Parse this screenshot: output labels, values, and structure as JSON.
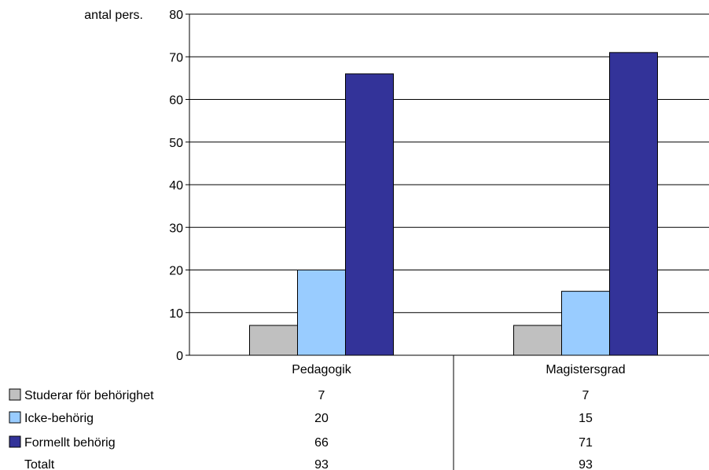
{
  "chart_data": {
    "type": "bar",
    "ylabel": "antal pers.",
    "ylim": [
      0,
      80
    ],
    "yticks": [
      0,
      10,
      20,
      30,
      40,
      50,
      60,
      70,
      80
    ],
    "grid": true,
    "categories": [
      "Pedagogik",
      "Magistersgrad"
    ],
    "series": [
      {
        "name": "Studerar för behörighet",
        "values": [
          7,
          7
        ],
        "color": "#c0c0c0"
      },
      {
        "name": "Icke-behörig",
        "values": [
          20,
          15
        ],
        "color": "#99ccff"
      },
      {
        "name": "Formellt behörig",
        "values": [
          66,
          71
        ],
        "color": "#333399"
      }
    ],
    "data_table": {
      "total_label": "Totalt",
      "totals": [
        93,
        93
      ]
    }
  }
}
